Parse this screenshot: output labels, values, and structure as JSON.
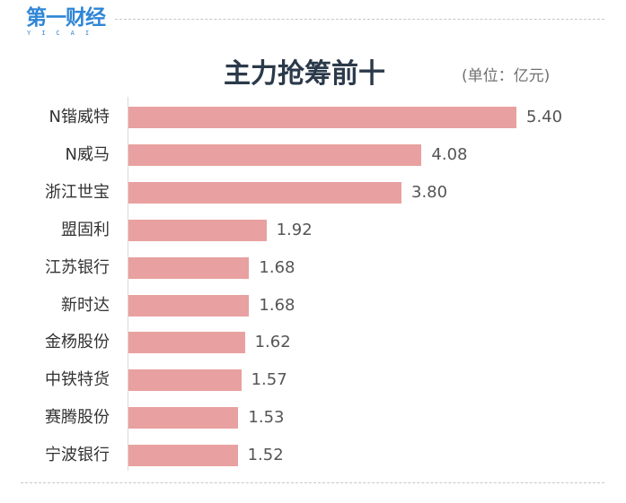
{
  "brand": {
    "name": "第一财经",
    "subtitle": "YICAI",
    "color": "#2f86d6"
  },
  "chart_data": {
    "type": "bar",
    "orientation": "horizontal",
    "title": "主力抢筹前十",
    "unit_label": "(单位：亿元)",
    "categories": [
      "N锴威特",
      "N威马",
      "浙江世宝",
      "盟固利",
      "江苏银行",
      "新时达",
      "金杨股份",
      "中铁特货",
      "赛腾股份",
      "宁波银行"
    ],
    "value_labels": [
      "5.40",
      "4.08",
      "3.80",
      "1.92",
      "1.68",
      "1.68",
      "1.62",
      "1.57",
      "1.53",
      "1.52"
    ],
    "values": [
      5.4,
      4.08,
      3.8,
      1.92,
      1.68,
      1.68,
      1.62,
      1.57,
      1.53,
      1.52
    ],
    "xlim": [
      0,
      5.4
    ],
    "bar_color": "#e8a1a0",
    "grid": false,
    "legend": "none"
  }
}
